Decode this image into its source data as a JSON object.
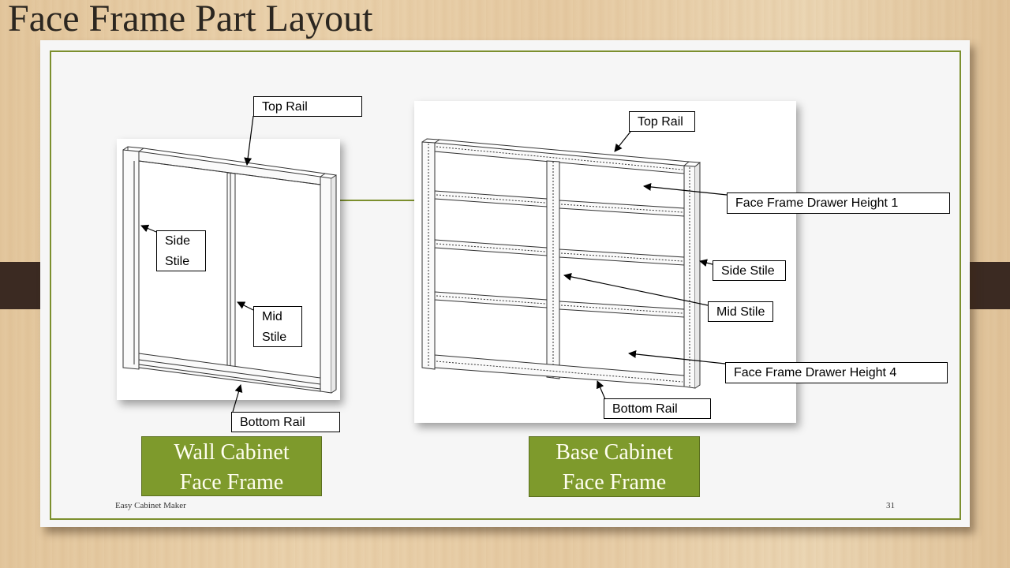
{
  "slide": {
    "title": "Face Frame Part Layout",
    "footer_left": "Easy Cabinet Maker",
    "page_number": "31",
    "accent_color": "#7e9a2c"
  },
  "wall_cabinet": {
    "caption_line1": "Wall Cabinet",
    "caption_line2": "Face Frame",
    "labels": {
      "top_rail": "Top Rail",
      "side_stile_1": "Side",
      "side_stile_2": "Stile",
      "mid_stile_1": "Mid",
      "mid_stile_2": "Stile",
      "bottom_rail": "Bottom Rail"
    }
  },
  "base_cabinet": {
    "caption_line1": "Base Cabinet",
    "caption_line2": "Face Frame",
    "labels": {
      "top_rail": "Top Rail",
      "drawer_height_1": "Face Frame Drawer Height 1",
      "side_stile": "Side Stile",
      "mid_stile": "Mid Stile",
      "drawer_height_4": "Face Frame Drawer Height 4",
      "bottom_rail": "Bottom Rail"
    }
  }
}
